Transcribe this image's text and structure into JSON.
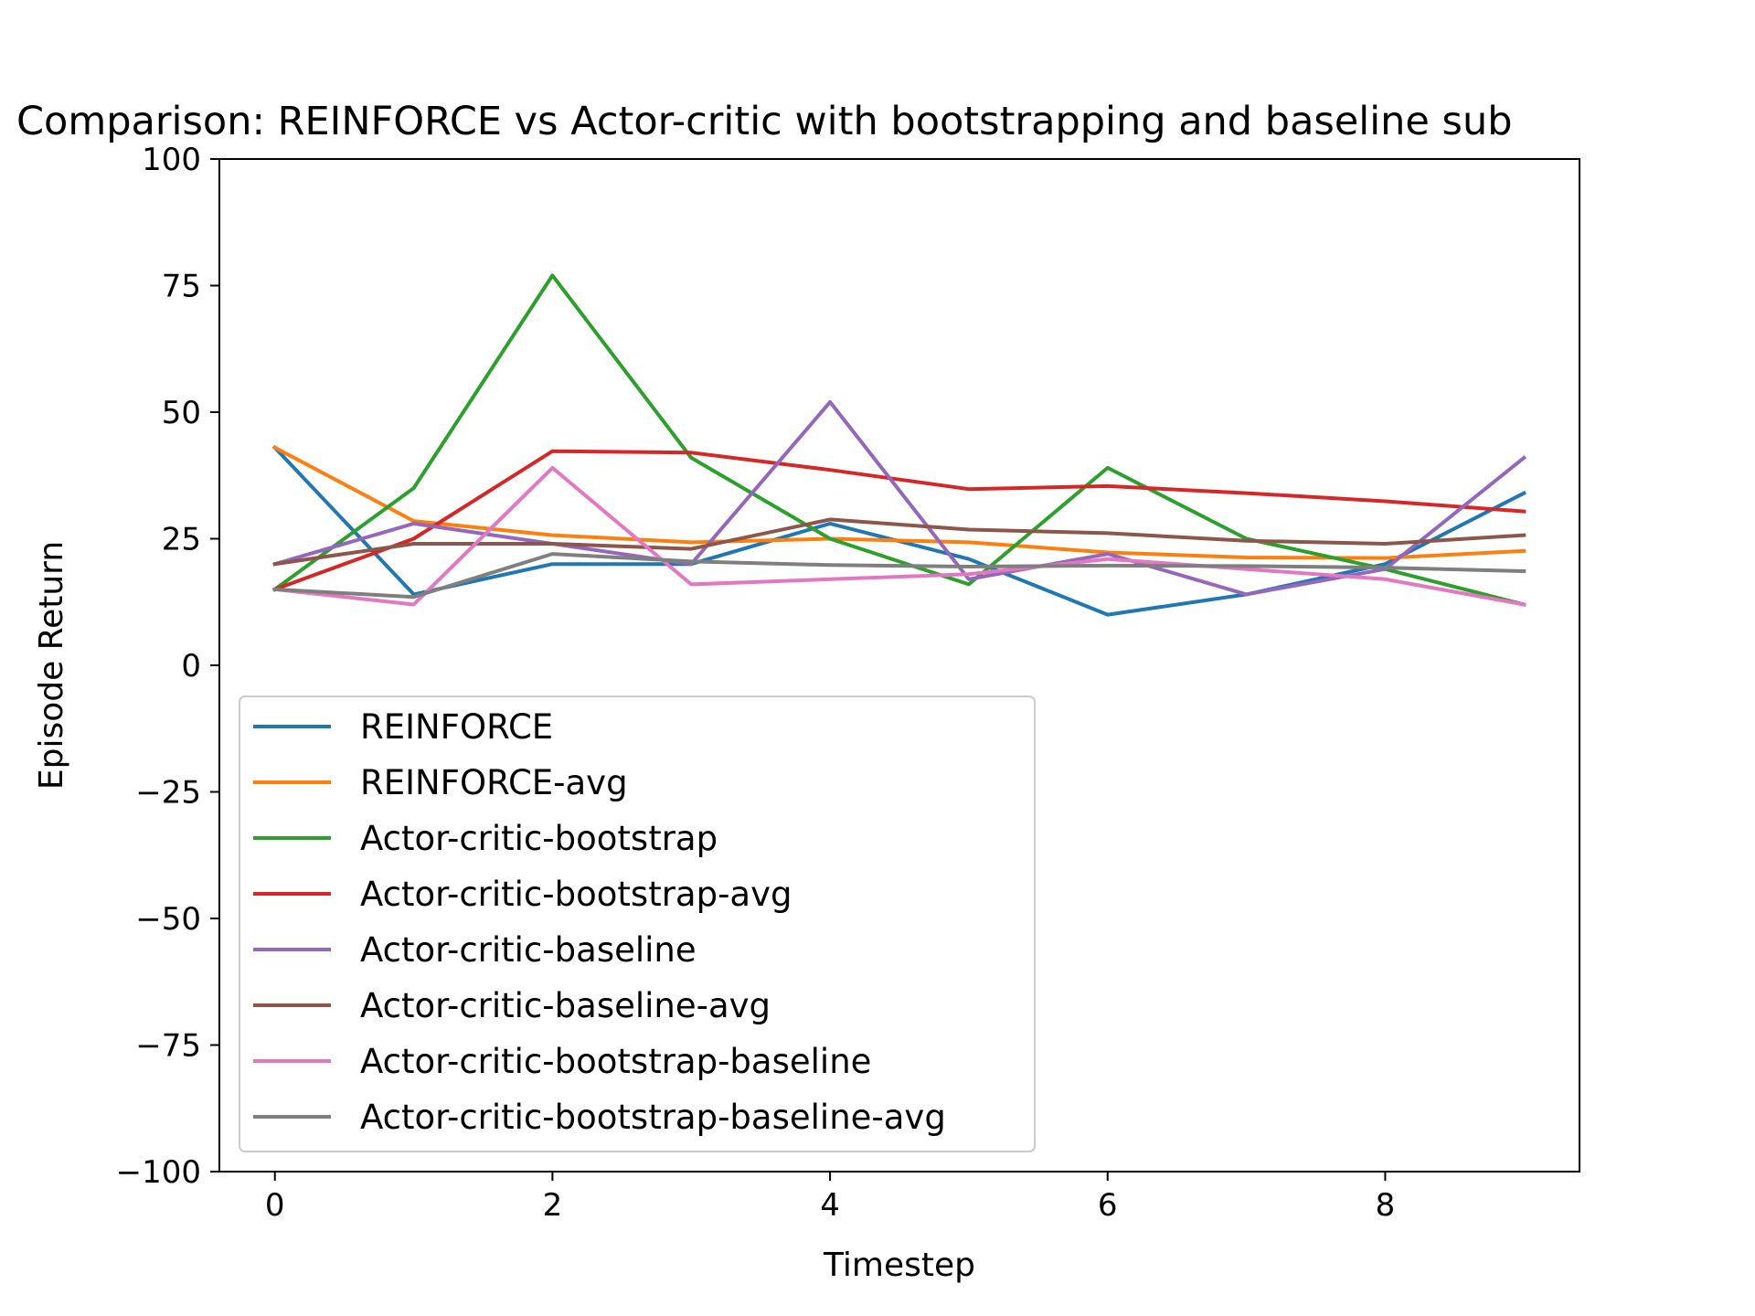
{
  "chart_data": {
    "type": "line",
    "title": "Comparison: REINFORCE vs Actor-critic with bootstrapping and baseline sub",
    "xlabel": "Timestep",
    "ylabel": "Episode Return",
    "xlim": [
      -0.4,
      9.4
    ],
    "ylim": [
      -100,
      100
    ],
    "x": [
      0,
      1,
      2,
      3,
      4,
      5,
      6,
      7,
      8,
      9
    ],
    "xticks": [
      0,
      2,
      4,
      6,
      8
    ],
    "xtick_labels": [
      "0",
      "2",
      "4",
      "6",
      "8"
    ],
    "yticks": [
      -100,
      -75,
      -50,
      -25,
      0,
      25,
      50,
      75,
      100
    ],
    "ytick_labels": [
      "−100",
      "−75",
      "−50",
      "−25",
      "0",
      "25",
      "50",
      "75",
      "100"
    ],
    "grid": false,
    "legend_position": "lower-left",
    "series": [
      {
        "name": "REINFORCE",
        "color": "#1f77b4",
        "values": [
          43,
          14,
          20,
          20,
          28,
          21,
          10,
          14,
          20,
          34
        ]
      },
      {
        "name": "REINFORCE-avg",
        "color": "#ff7f0e",
        "values": [
          43,
          28.5,
          25.7,
          24.3,
          25,
          24.3,
          22.3,
          21.3,
          21.2,
          22.6
        ]
      },
      {
        "name": "Actor-critic-bootstrap",
        "color": "#2ca02c",
        "values": [
          15,
          35,
          77,
          41,
          25,
          16,
          39,
          25,
          19,
          12
        ]
      },
      {
        "name": "Actor-critic-bootstrap-avg",
        "color": "#d62728",
        "values": [
          15,
          25,
          42.3,
          42,
          38.6,
          34.8,
          35.4,
          34,
          32.4,
          30.4
        ]
      },
      {
        "name": "Actor-critic-baseline",
        "color": "#9467bd",
        "values": [
          20,
          28,
          24,
          20,
          52,
          17,
          22,
          14,
          19,
          41
        ]
      },
      {
        "name": "Actor-critic-baseline-avg",
        "color": "#8c564b",
        "values": [
          20,
          24,
          24,
          23,
          28.8,
          26.8,
          26.1,
          24.6,
          24,
          25.7
        ]
      },
      {
        "name": "Actor-critic-bootstrap-baseline",
        "color": "#e377c2",
        "values": [
          15,
          12,
          39,
          16,
          17,
          18,
          21,
          19,
          17,
          12
        ]
      },
      {
        "name": "Actor-critic-bootstrap-baseline-avg",
        "color": "#7f7f7f",
        "values": [
          15,
          13.5,
          22,
          20.5,
          19.8,
          19.5,
          19.7,
          19.6,
          19.3,
          18.6
        ]
      }
    ]
  }
}
